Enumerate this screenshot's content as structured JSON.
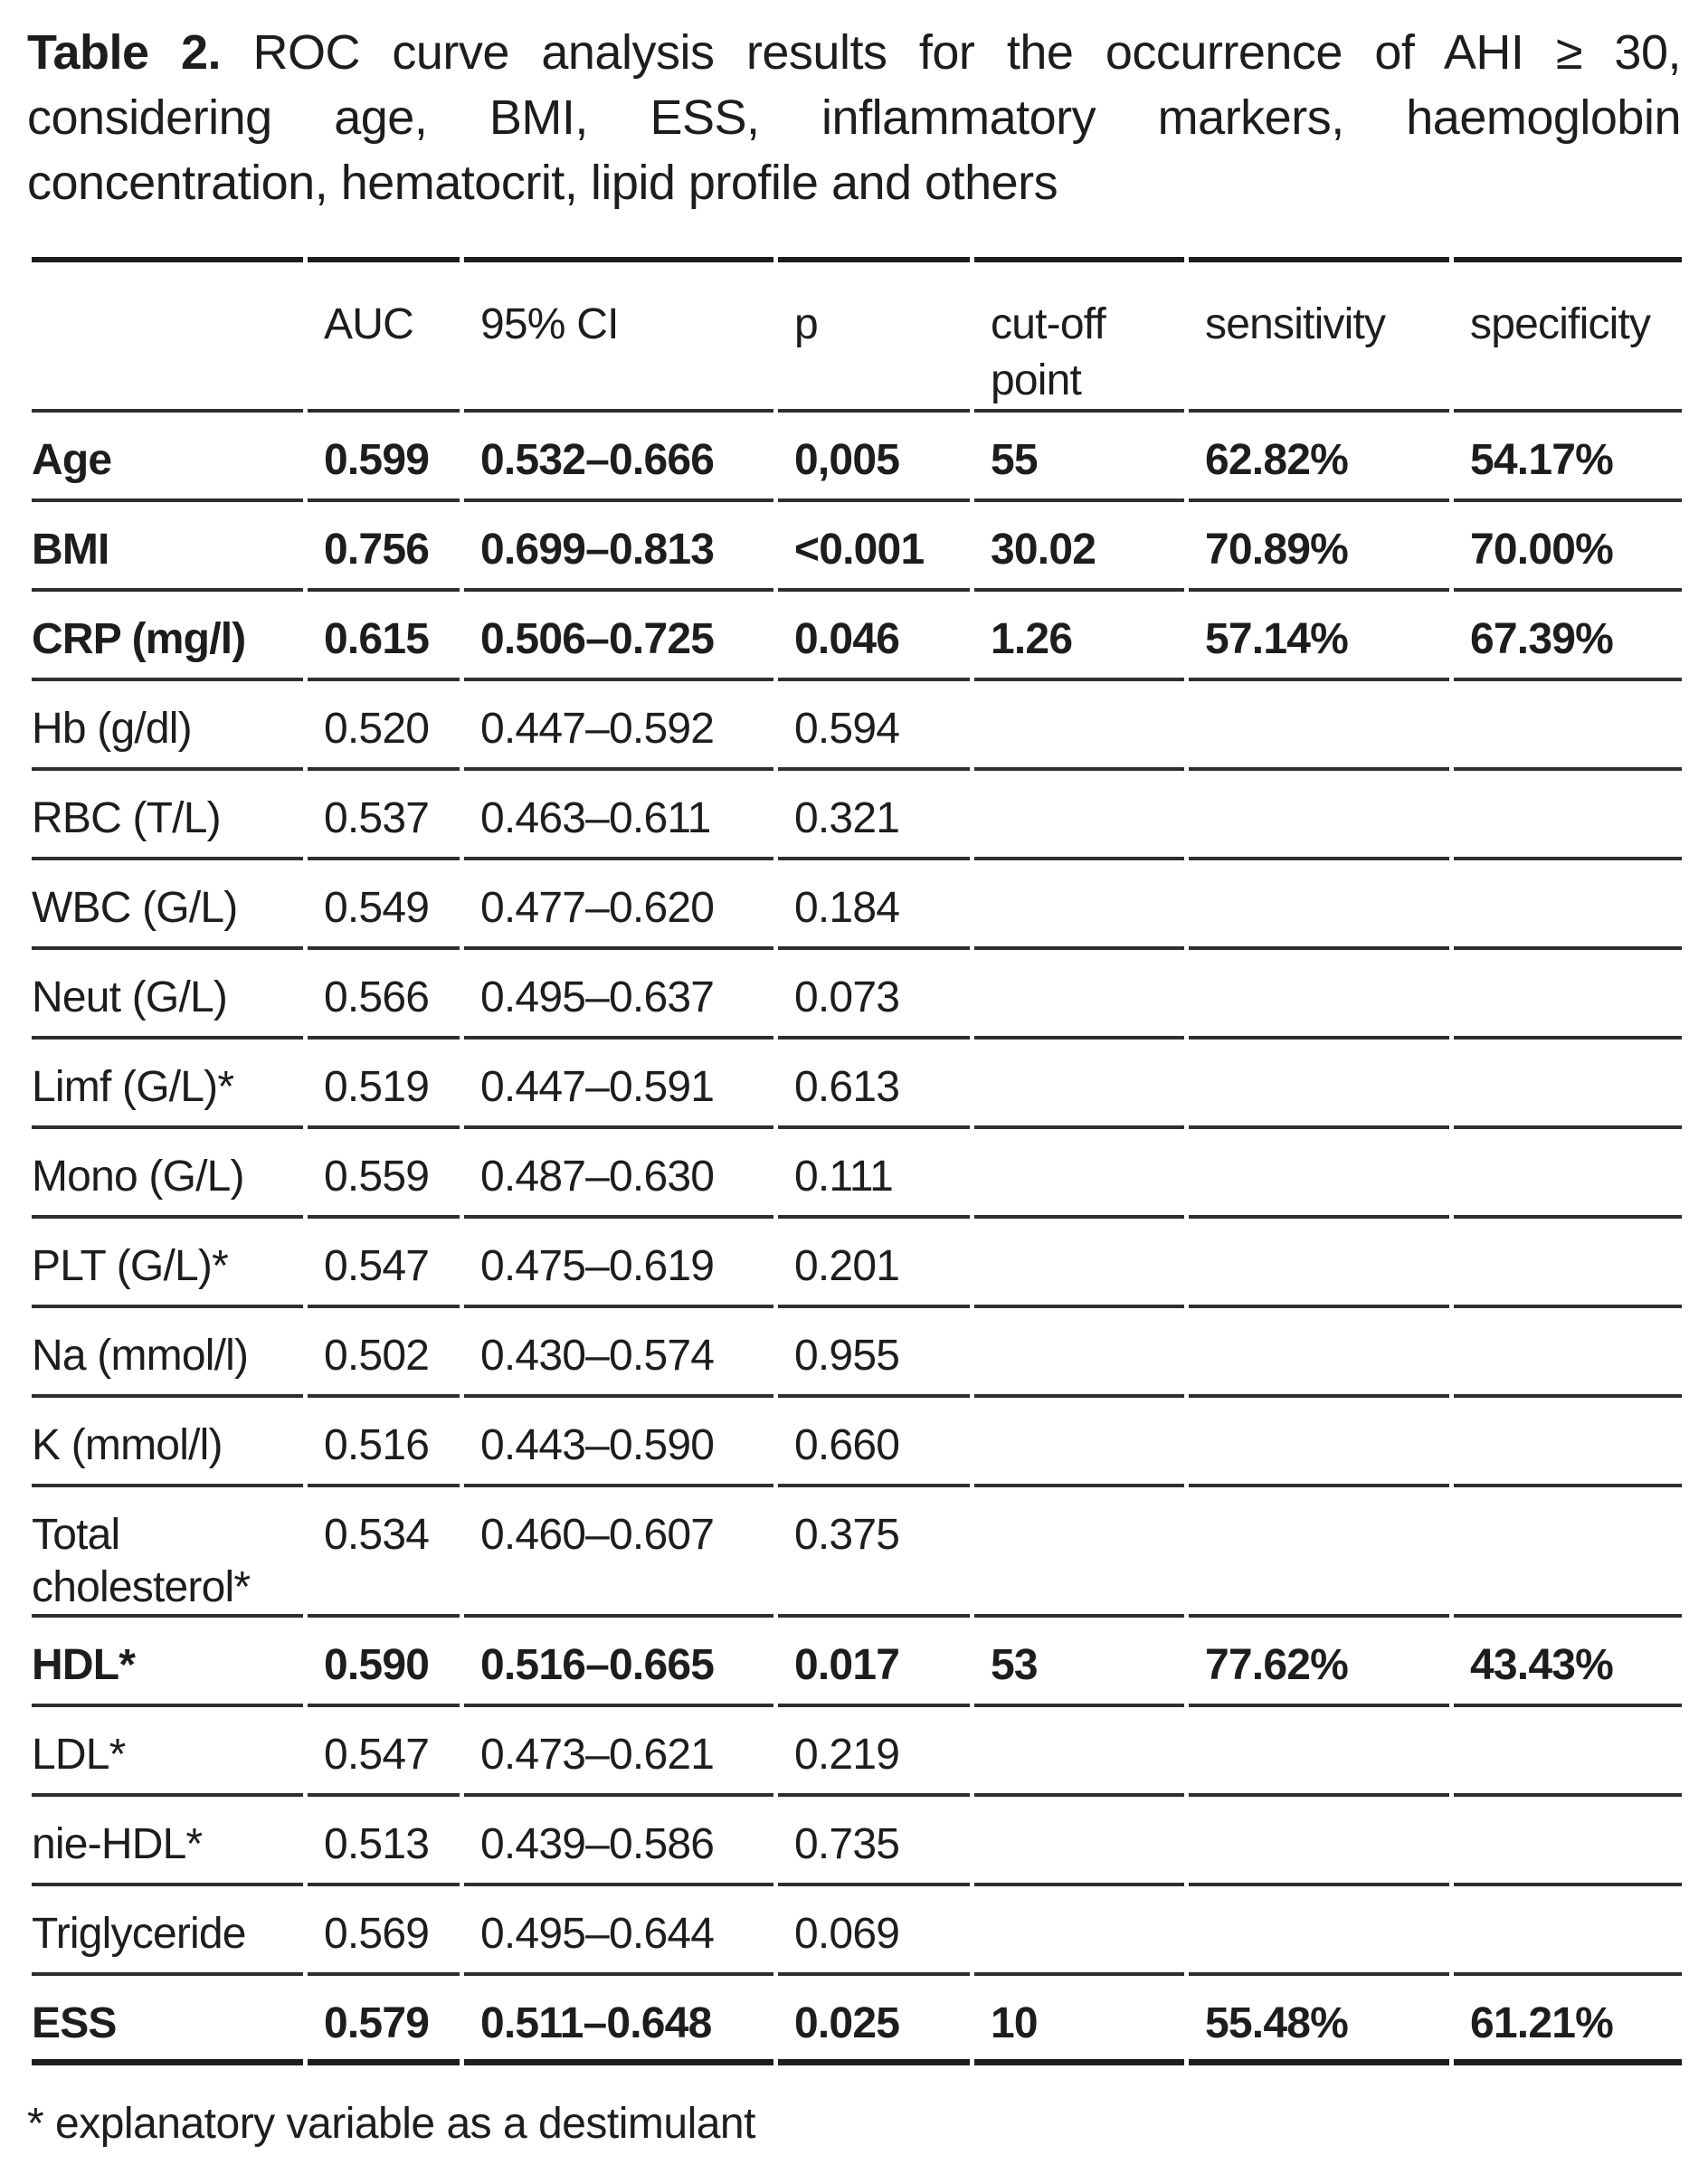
{
  "title": {
    "bold": "Table 2.",
    "line1_rest": "ROC curve analysis results for the occurrence of AHI ≥ 30,",
    "line2": "considering age, BMI, ESS, inflammatory markers, haemoglobin",
    "line3": "concentration, hematocrit, lipid profile and others"
  },
  "table": {
    "columns": [
      "",
      "AUC",
      "95% CI",
      "p",
      "cut-off point",
      "sensitivity",
      "specificity"
    ],
    "rows": [
      {
        "label": "Age",
        "bold": true,
        "auc": "0.599",
        "ci": "0.532–0.666",
        "p": "0,005",
        "cutoff": "55",
        "sensitivity": "62.82%",
        "specificity": "54.17%"
      },
      {
        "label": "BMI",
        "bold": true,
        "auc": "0.756",
        "ci": "0.699–0.813",
        "p": "<0.001",
        "cutoff": "30.02",
        "sensitivity": "70.89%",
        "specificity": "70.00%"
      },
      {
        "label": "CRP (mg/l)",
        "bold": true,
        "auc": "0.615",
        "ci": "0.506–0.725",
        "p": "0.046",
        "cutoff": "1.26",
        "sensitivity": "57.14%",
        "specificity": "67.39%"
      },
      {
        "label": "Hb (g/dl)",
        "bold": false,
        "auc": "0.520",
        "ci": "0.447–0.592",
        "p": "0.594"
      },
      {
        "label": "RBC (T/L)",
        "bold": false,
        "auc": "0.537",
        "ci": "0.463–0.611",
        "p": "0.321"
      },
      {
        "label": "WBC (G/L)",
        "bold": false,
        "auc": "0.549",
        "ci": "0.477–0.620",
        "p": "0.184"
      },
      {
        "label": "Neut (G/L)",
        "bold": false,
        "auc": "0.566",
        "ci": "0.495–0.637",
        "p": "0.073"
      },
      {
        "label": "Limf (G/L)*",
        "bold": false,
        "auc": "0.519",
        "ci": "0.447–0.591",
        "p": "0.613"
      },
      {
        "label": "Mono (G/L)",
        "bold": false,
        "auc": "0.559",
        "ci": "0.487–0.630",
        "p": "0.111"
      },
      {
        "label": "PLT (G/L)*",
        "bold": false,
        "auc": "0.547",
        "ci": "0.475–0.619",
        "p": "0.201"
      },
      {
        "label": "Na (mmol/l)",
        "bold": false,
        "auc": "0.502",
        "ci": "0.430–0.574",
        "p": "0.955"
      },
      {
        "label": "K (mmol/l)",
        "bold": false,
        "auc": "0.516",
        "ci": "0.443–0.590",
        "p": "0.660"
      },
      {
        "label": "Total cholesterol*",
        "bold": false,
        "auc": "0.534",
        "ci": "0.460–0.607",
        "p": "0.375"
      },
      {
        "label": "HDL*",
        "bold": true,
        "auc": "0.590",
        "ci": "0.516–0.665",
        "p": "0.017",
        "cutoff": "53",
        "sensitivity": "77.62%",
        "specificity": "43.43%"
      },
      {
        "label": "LDL*",
        "bold": false,
        "auc": "0.547",
        "ci": "0.473–0.621",
        "p": "0.219"
      },
      {
        "label": "nie-HDL*",
        "bold": false,
        "auc": "0.513",
        "ci": "0.439–0.586",
        "p": "0.735"
      },
      {
        "label": "Triglyceride",
        "bold": false,
        "auc": "0.569",
        "ci": "0.495–0.644",
        "p": "0.069"
      },
      {
        "label": "ESS",
        "bold": true,
        "auc": "0.579",
        "ci": "0.511–0.648",
        "p": "0.025",
        "cutoff": "10",
        "sensitivity": "55.48%",
        "specificity": "61.21%"
      }
    ]
  },
  "footnote": "* explanatory variable as a destimulant",
  "colors": {
    "text": "#1d1d1b",
    "rule": "#2e2e2e",
    "background": "#ffffff"
  }
}
